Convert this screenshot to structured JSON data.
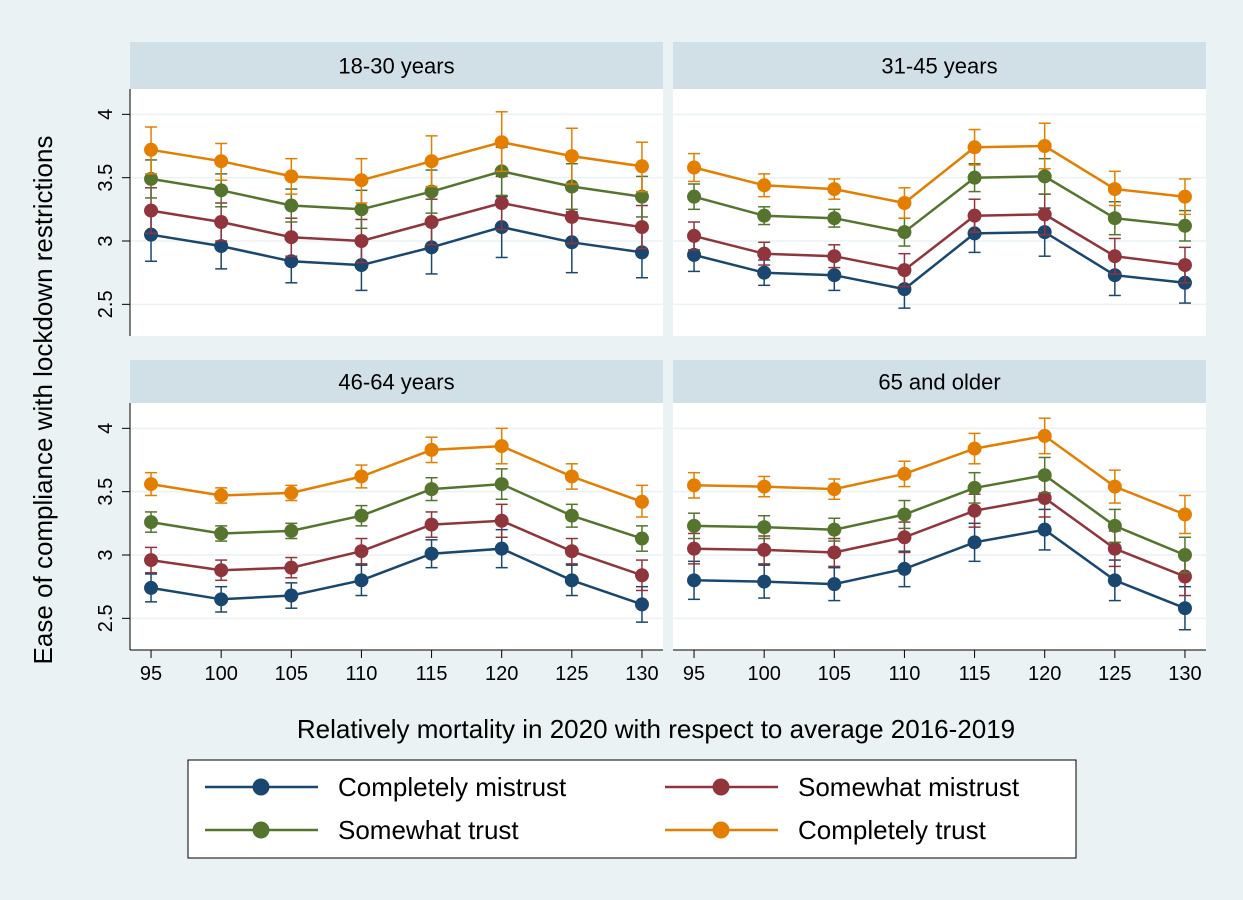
{
  "figure": {
    "ylabel": "Ease of compliance with lockdown restrictions",
    "xlabel": "Relatively mortality in 2020 with respect to average 2016-2019"
  },
  "legend": {
    "items": [
      {
        "label": "Completely mistrust",
        "color": "#1a476f"
      },
      {
        "label": "Somewhat mistrust",
        "color": "#90353b"
      },
      {
        "label": "Somewhat trust",
        "color": "#55752f"
      },
      {
        "label": "Completely trust",
        "color": "#e37e00"
      }
    ]
  },
  "chart_data": {
    "type": "line",
    "x": [
      95,
      100,
      105,
      110,
      115,
      120,
      125,
      130
    ],
    "x_ticks": [
      "95",
      "100",
      "105",
      "110",
      "115",
      "120",
      "125",
      "130"
    ],
    "y_ticks": [
      "2.5",
      "3",
      "3.5",
      "4"
    ],
    "ylim": [
      2.25,
      4.2
    ],
    "xlim": [
      93.5,
      131.5
    ],
    "grid": true,
    "legend_position": "bottom",
    "panels": [
      {
        "title": "18-30 years",
        "series": [
          {
            "name": "Completely mistrust",
            "color": "#1a476f",
            "values": [
              3.05,
              2.96,
              2.84,
              2.81,
              2.95,
              3.11,
              2.99,
              2.91
            ],
            "ci_low": [
              2.84,
              2.78,
              2.67,
              2.61,
              2.74,
              2.87,
              2.75,
              2.71
            ],
            "ci_high": [
              3.26,
              3.14,
              3.01,
              3.01,
              3.16,
              3.35,
              3.23,
              3.11
            ]
          },
          {
            "name": "Somewhat mistrust",
            "color": "#90353b",
            "values": [
              3.24,
              3.15,
              3.03,
              3.0,
              3.15,
              3.3,
              3.19,
              3.11
            ],
            "ci_low": [
              3.06,
              3.0,
              2.88,
              2.83,
              2.97,
              3.09,
              2.98,
              2.94
            ],
            "ci_high": [
              3.42,
              3.3,
              3.18,
              3.17,
              3.33,
              3.51,
              3.4,
              3.28
            ]
          },
          {
            "name": "Somewhat trust",
            "color": "#55752f",
            "values": [
              3.49,
              3.4,
              3.28,
              3.25,
              3.39,
              3.55,
              3.43,
              3.35
            ],
            "ci_low": [
              3.34,
              3.27,
              3.15,
              3.1,
              3.22,
              3.36,
              3.25,
              3.19
            ],
            "ci_high": [
              3.64,
              3.53,
              3.41,
              3.4,
              3.56,
              3.74,
              3.61,
              3.51
            ]
          },
          {
            "name": "Completely trust",
            "color": "#e37e00",
            "values": [
              3.72,
              3.63,
              3.51,
              3.48,
              3.63,
              3.78,
              3.67,
              3.59
            ],
            "ci_low": [
              3.53,
              3.48,
              3.37,
              3.3,
              3.43,
              3.55,
              3.45,
              3.39
            ],
            "ci_high": [
              3.9,
              3.77,
              3.65,
              3.65,
              3.83,
              4.02,
              3.89,
              3.78
            ]
          }
        ]
      },
      {
        "title": "31-45 years",
        "series": [
          {
            "name": "Completely mistrust",
            "color": "#1a476f",
            "values": [
              2.89,
              2.75,
              2.73,
              2.62,
              3.06,
              3.07,
              2.73,
              2.67
            ],
            "ci_low": [
              2.76,
              2.65,
              2.61,
              2.47,
              2.91,
              2.88,
              2.57,
              2.51
            ],
            "ci_high": [
              3.02,
              2.85,
              2.85,
              2.77,
              3.21,
              3.26,
              2.89,
              2.83
            ]
          },
          {
            "name": "Somewhat mistrust",
            "color": "#90353b",
            "values": [
              3.04,
              2.9,
              2.88,
              2.77,
              3.2,
              3.21,
              2.88,
              2.81
            ],
            "ci_low": [
              2.93,
              2.81,
              2.79,
              2.64,
              3.07,
              3.05,
              2.74,
              2.67
            ],
            "ci_high": [
              3.15,
              2.99,
              2.97,
              2.9,
              3.33,
              3.37,
              3.02,
              2.95
            ]
          },
          {
            "name": "Somewhat trust",
            "color": "#55752f",
            "values": [
              3.35,
              3.2,
              3.18,
              3.07,
              3.5,
              3.51,
              3.18,
              3.12
            ],
            "ci_low": [
              3.25,
              3.13,
              3.11,
              2.96,
              3.39,
              3.37,
              3.05,
              3.0
            ],
            "ci_high": [
              3.45,
              3.27,
              3.25,
              3.18,
              3.61,
              3.65,
              3.31,
              3.24
            ]
          },
          {
            "name": "Completely trust",
            "color": "#e37e00",
            "values": [
              3.58,
              3.44,
              3.41,
              3.3,
              3.74,
              3.75,
              3.41,
              3.35
            ],
            "ci_low": [
              3.47,
              3.35,
              3.33,
              3.18,
              3.6,
              3.57,
              3.28,
              3.21
            ],
            "ci_high": [
              3.69,
              3.53,
              3.49,
              3.42,
              3.88,
              3.93,
              3.55,
              3.49
            ]
          }
        ]
      },
      {
        "title": "46-64 years",
        "series": [
          {
            "name": "Completely mistrust",
            "color": "#1a476f",
            "values": [
              2.74,
              2.65,
              2.68,
              2.8,
              3.01,
              3.05,
              2.8,
              2.61
            ],
            "ci_low": [
              2.63,
              2.55,
              2.58,
              2.68,
              2.9,
              2.9,
              2.68,
              2.47
            ],
            "ci_high": [
              2.85,
              2.75,
              2.78,
              2.92,
              3.12,
              3.2,
              2.92,
              2.75
            ]
          },
          {
            "name": "Somewhat mistrust",
            "color": "#90353b",
            "values": [
              2.96,
              2.88,
              2.9,
              3.03,
              3.24,
              3.27,
              3.03,
              2.84
            ],
            "ci_low": [
              2.86,
              2.8,
              2.82,
              2.93,
              3.14,
              3.14,
              2.93,
              2.72
            ],
            "ci_high": [
              3.06,
              2.96,
              2.98,
              3.13,
              3.34,
              3.4,
              3.13,
              2.96
            ]
          },
          {
            "name": "Somewhat trust",
            "color": "#55752f",
            "values": [
              3.26,
              3.17,
              3.19,
              3.31,
              3.52,
              3.56,
              3.31,
              3.13
            ],
            "ci_low": [
              3.18,
              3.11,
              3.13,
              3.23,
              3.43,
              3.44,
              3.22,
              3.03
            ],
            "ci_high": [
              3.34,
              3.23,
              3.25,
              3.39,
              3.61,
              3.68,
              3.4,
              3.23
            ]
          },
          {
            "name": "Completely trust",
            "color": "#e37e00",
            "values": [
              3.56,
              3.47,
              3.49,
              3.62,
              3.83,
              3.86,
              3.62,
              3.42
            ],
            "ci_low": [
              3.47,
              3.41,
              3.43,
              3.53,
              3.73,
              3.72,
              3.52,
              3.3
            ],
            "ci_high": [
              3.65,
              3.53,
              3.55,
              3.71,
              3.93,
              4.0,
              3.72,
              3.55
            ]
          }
        ]
      },
      {
        "title": "65 and older",
        "series": [
          {
            "name": "Completely mistrust",
            "color": "#1a476f",
            "values": [
              2.8,
              2.79,
              2.77,
              2.89,
              3.1,
              3.2,
              2.8,
              2.58
            ],
            "ci_low": [
              2.65,
              2.66,
              2.64,
              2.75,
              2.95,
              3.04,
              2.64,
              2.41
            ],
            "ci_high": [
              2.95,
              2.92,
              2.9,
              3.03,
              3.25,
              3.36,
              2.96,
              2.75
            ]
          },
          {
            "name": "Somewhat mistrust",
            "color": "#90353b",
            "values": [
              3.05,
              3.04,
              3.02,
              3.14,
              3.35,
              3.45,
              3.05,
              2.83
            ],
            "ci_low": [
              2.93,
              2.93,
              2.91,
              3.02,
              3.22,
              3.3,
              2.91,
              2.68
            ],
            "ci_high": [
              3.17,
              3.15,
              3.13,
              3.26,
              3.48,
              3.6,
              3.19,
              2.98
            ]
          },
          {
            "name": "Somewhat trust",
            "color": "#55752f",
            "values": [
              3.23,
              3.22,
              3.2,
              3.32,
              3.53,
              3.63,
              3.23,
              3.0
            ],
            "ci_low": [
              3.13,
              3.13,
              3.11,
              3.21,
              3.41,
              3.49,
              3.1,
              2.86
            ],
            "ci_high": [
              3.33,
              3.31,
              3.29,
              3.43,
              3.65,
              3.77,
              3.36,
              3.14
            ]
          },
          {
            "name": "Completely trust",
            "color": "#e37e00",
            "values": [
              3.55,
              3.54,
              3.52,
              3.64,
              3.84,
              3.94,
              3.54,
              3.32
            ],
            "ci_low": [
              3.45,
              3.46,
              3.44,
              3.54,
              3.72,
              3.8,
              3.41,
              3.17
            ],
            "ci_high": [
              3.65,
              3.62,
              3.6,
              3.74,
              3.96,
              4.08,
              3.67,
              3.47
            ]
          }
        ]
      }
    ]
  }
}
